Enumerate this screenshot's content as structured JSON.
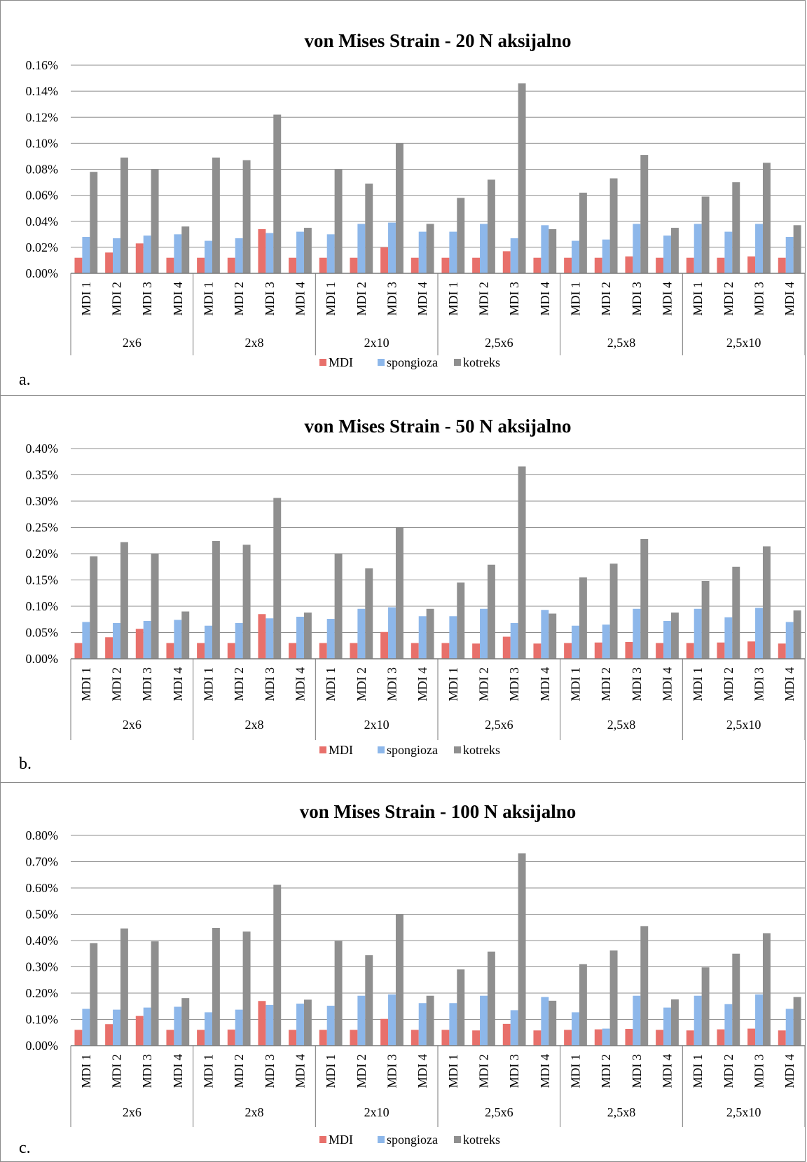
{
  "colors": {
    "MDI": "#e8706b",
    "spongioza": "#8db7ea",
    "kotreks": "#8f8f8f",
    "grid": "#8c8c8c",
    "axis": "#7a7a7a"
  },
  "chart_data": [
    {
      "type": "bar",
      "title": "von Mises Strain - 20 N  aksijalno",
      "panel_label": "a.",
      "ylim": [
        0,
        0.16
      ],
      "yticks": [
        "0.00%",
        "0.02%",
        "0.04%",
        "0.06%",
        "0.08%",
        "0.10%",
        "0.12%",
        "0.14%",
        "0.16%"
      ],
      "groups": [
        "2x6",
        "2x8",
        "2x10",
        "2,5x6",
        "2,5x8",
        "2,5x10"
      ],
      "subcategories": [
        "MDI 1",
        "MDI 2",
        "MDI 3",
        "MDI 4"
      ],
      "legend_position": "bottom",
      "grid": true,
      "series": [
        {
          "name": "MDI",
          "values": [
            0.012,
            0.016,
            0.023,
            0.012,
            0.012,
            0.012,
            0.034,
            0.012,
            0.012,
            0.012,
            0.02,
            0.012,
            0.012,
            0.012,
            0.017,
            0.012,
            0.012,
            0.012,
            0.013,
            0.012,
            0.012,
            0.012,
            0.013,
            0.012
          ]
        },
        {
          "name": "spongioza",
          "values": [
            0.028,
            0.027,
            0.029,
            0.03,
            0.025,
            0.027,
            0.031,
            0.032,
            0.03,
            0.038,
            0.039,
            0.032,
            0.032,
            0.038,
            0.027,
            0.037,
            0.025,
            0.026,
            0.038,
            0.029,
            0.038,
            0.032,
            0.038,
            0.028
          ]
        },
        {
          "name": "kotreks",
          "values": [
            0.078,
            0.089,
            0.08,
            0.036,
            0.089,
            0.087,
            0.122,
            0.035,
            0.08,
            0.069,
            0.1,
            0.038,
            0.058,
            0.072,
            0.146,
            0.034,
            0.062,
            0.073,
            0.091,
            0.035,
            0.059,
            0.07,
            0.085,
            0.037
          ]
        }
      ]
    },
    {
      "type": "bar",
      "title": "von Mises Strain - 50 N aksijalno",
      "panel_label": "b.",
      "ylim": [
        0,
        0.4
      ],
      "yticks": [
        "0.00%",
        "0.05%",
        "0.10%",
        "0.15%",
        "0.20%",
        "0.25%",
        "0.30%",
        "0.35%",
        "0.40%"
      ],
      "groups": [
        "2x6",
        "2x8",
        "2x10",
        "2,5x6",
        "2,5x8",
        "2,5x10"
      ],
      "subcategories": [
        "MDI 1",
        "MDI 2",
        "MDI 3",
        "MDI 4"
      ],
      "legend_position": "bottom",
      "grid": true,
      "series": [
        {
          "name": "MDI",
          "values": [
            0.03,
            0.041,
            0.057,
            0.03,
            0.03,
            0.03,
            0.085,
            0.03,
            0.03,
            0.03,
            0.051,
            0.03,
            0.03,
            0.029,
            0.042,
            0.029,
            0.03,
            0.031,
            0.032,
            0.03,
            0.03,
            0.031,
            0.033,
            0.029
          ]
        },
        {
          "name": "spongioza",
          "values": [
            0.07,
            0.068,
            0.072,
            0.074,
            0.063,
            0.068,
            0.077,
            0.08,
            0.076,
            0.095,
            0.098,
            0.081,
            0.081,
            0.095,
            0.068,
            0.093,
            0.063,
            0.065,
            0.095,
            0.072,
            0.095,
            0.079,
            0.097,
            0.07
          ]
        },
        {
          "name": "kotreks",
          "values": [
            0.195,
            0.222,
            0.2,
            0.09,
            0.224,
            0.217,
            0.306,
            0.088,
            0.2,
            0.172,
            0.25,
            0.095,
            0.145,
            0.179,
            0.366,
            0.086,
            0.155,
            0.181,
            0.228,
            0.088,
            0.148,
            0.175,
            0.214,
            0.092
          ]
        }
      ]
    },
    {
      "type": "bar",
      "title": "von Mises Strain - 100 N aksijalno",
      "panel_label": "c.",
      "ylim": [
        0,
        0.8
      ],
      "yticks": [
        "0.00%",
        "0.10%",
        "0.20%",
        "0.30%",
        "0.40%",
        "0.50%",
        "0.60%",
        "0.70%",
        "0.80%"
      ],
      "groups": [
        "2x6",
        "2x8",
        "2x10",
        "2,5x6",
        "2,5x8",
        "2,5x10"
      ],
      "subcategories": [
        "MDI 1",
        "MDI 2",
        "MDI 3",
        "MDI 4"
      ],
      "legend_position": "bottom",
      "grid": true,
      "series": [
        {
          "name": "MDI",
          "values": [
            0.06,
            0.082,
            0.113,
            0.06,
            0.06,
            0.061,
            0.17,
            0.06,
            0.06,
            0.06,
            0.102,
            0.06,
            0.06,
            0.058,
            0.083,
            0.058,
            0.06,
            0.062,
            0.064,
            0.06,
            0.058,
            0.062,
            0.065,
            0.058
          ]
        },
        {
          "name": "spongioza",
          "values": [
            0.14,
            0.137,
            0.145,
            0.148,
            0.127,
            0.137,
            0.155,
            0.16,
            0.152,
            0.19,
            0.195,
            0.162,
            0.162,
            0.19,
            0.135,
            0.185,
            0.127,
            0.065,
            0.19,
            0.145,
            0.19,
            0.158,
            0.195,
            0.14
          ]
        },
        {
          "name": "kotreks",
          "values": [
            0.39,
            0.446,
            0.397,
            0.181,
            0.448,
            0.434,
            0.612,
            0.175,
            0.398,
            0.344,
            0.5,
            0.19,
            0.29,
            0.358,
            0.732,
            0.171,
            0.31,
            0.362,
            0.455,
            0.176,
            0.298,
            0.35,
            0.428,
            0.185
          ]
        }
      ]
    }
  ]
}
